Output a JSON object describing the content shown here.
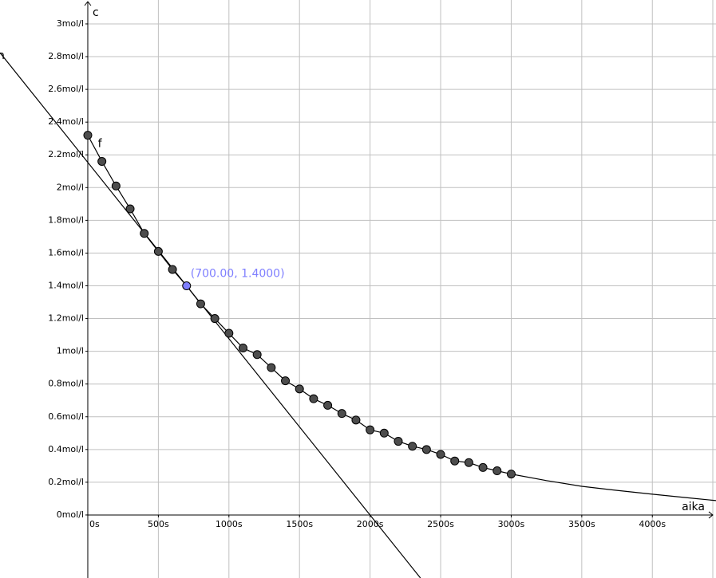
{
  "chart_data": {
    "type": "scatter",
    "xlabel": "aika",
    "ylabel": "c",
    "xlim": [
      -622,
      4451
    ],
    "ylim": [
      -0.385,
      3.146
    ],
    "grid": true,
    "xticks": [
      {
        "value": 0,
        "label": "0s"
      },
      {
        "value": 500,
        "label": "500s"
      },
      {
        "value": 1000,
        "label": "1000s"
      },
      {
        "value": 1500,
        "label": "1500s"
      },
      {
        "value": 2000,
        "label": "2000s"
      },
      {
        "value": 2500,
        "label": "2500s"
      },
      {
        "value": 3000,
        "label": "3000s"
      },
      {
        "value": 3500,
        "label": "3500s"
      },
      {
        "value": 4000,
        "label": "4000s"
      }
    ],
    "yticks": [
      {
        "value": 0,
        "label": "0mol/l"
      },
      {
        "value": 0.2,
        "label": "0.2mol/l"
      },
      {
        "value": 0.4,
        "label": "0.4mol/l"
      },
      {
        "value": 0.6,
        "label": "0.6mol/l"
      },
      {
        "value": 0.8,
        "label": "0.8mol/l"
      },
      {
        "value": 1,
        "label": "1mol/l"
      },
      {
        "value": 1.2,
        "label": "1.2mol/l"
      },
      {
        "value": 1.4,
        "label": "1.4mol/l"
      },
      {
        "value": 1.6,
        "label": "1.6mol/l"
      },
      {
        "value": 1.8,
        "label": "1.8mol/l"
      },
      {
        "value": 2,
        "label": "2mol/l"
      },
      {
        "value": 2.2,
        "label": "2.2mol/l"
      },
      {
        "value": 2.4,
        "label": "2.4mol/l"
      },
      {
        "value": 2.6,
        "label": "2.6mol/l"
      },
      {
        "value": 2.8,
        "label": "2.8mol/l"
      },
      {
        "value": 3,
        "label": "3mol/l"
      }
    ],
    "points": {
      "color": "#4d4d4d",
      "x": [
        0,
        100,
        200,
        300,
        400,
        500,
        600,
        800,
        900,
        1000,
        1100,
        1200,
        1300,
        1400,
        1500,
        1600,
        1700,
        1800,
        1900,
        2000,
        2100,
        2200,
        2300,
        2400,
        2500,
        2600,
        2700,
        2800,
        2900,
        3000
      ],
      "values": [
        2.32,
        2.16,
        2.01,
        1.87,
        1.72,
        1.61,
        1.5,
        1.29,
        1.2,
        1.11,
        1.02,
        0.98,
        0.9,
        0.82,
        0.77,
        0.71,
        0.67,
        0.62,
        0.58,
        0.52,
        0.5,
        0.45,
        0.42,
        0.4,
        0.37,
        0.33,
        0.32,
        0.29,
        0.27,
        0.25
      ]
    },
    "curves": [
      {
        "name": "f",
        "color": "#000000",
        "x": [
          0,
          100,
          200,
          300,
          400,
          500,
          600,
          700,
          800,
          900,
          1000,
          1100,
          1200,
          1300,
          1400,
          1500,
          1600,
          1700,
          1800,
          1900,
          2000,
          2100,
          2200,
          2300,
          2400,
          2500,
          2600,
          2700,
          2800,
          2900,
          3000,
          3250,
          3500,
          3750,
          4000,
          4250,
          4451
        ],
        "values": [
          2.32,
          2.16,
          2.01,
          1.87,
          1.72,
          1.61,
          1.5,
          1.4,
          1.29,
          1.2,
          1.11,
          1.02,
          0.98,
          0.9,
          0.82,
          0.77,
          0.71,
          0.67,
          0.62,
          0.58,
          0.52,
          0.5,
          0.45,
          0.42,
          0.4,
          0.37,
          0.33,
          0.32,
          0.29,
          0.27,
          0.25,
          0.21,
          0.175,
          0.15,
          0.127,
          0.105,
          0.088
        ]
      },
      {
        "name": "h",
        "color": "#000000",
        "x": [
          -622,
          2357
        ],
        "values": [
          2.824,
          -0.385
        ]
      }
    ],
    "highlight": {
      "x": 700,
      "value": 1.4,
      "label": "(700.00, 1.4000)",
      "color": "#7f7fff"
    }
  }
}
